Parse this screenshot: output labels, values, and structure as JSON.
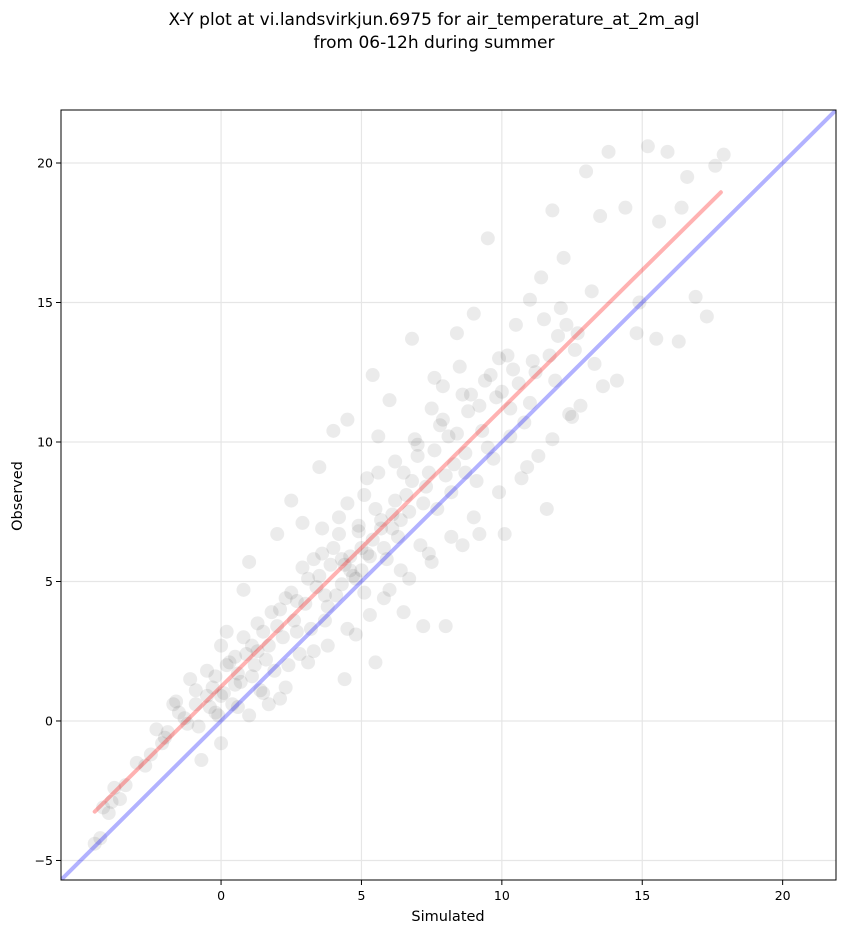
{
  "chart_data": {
    "type": "scatter",
    "title_lines": [
      "X-Y plot at vi.landsvirkjun.6975 for air_temperature_at_2m_agl",
      "from 06-12h during summer"
    ],
    "xlabel": "Simulated",
    "ylabel": "Observed",
    "xlim": [
      -5.7,
      21.9
    ],
    "ylim": [
      -5.7,
      21.9
    ],
    "xticks": [
      0,
      5,
      10,
      15,
      20
    ],
    "yticks": [
      -5,
      0,
      5,
      10,
      15,
      20
    ],
    "xtick_labels": [
      "0",
      "5",
      "10",
      "15",
      "20"
    ],
    "ytick_labels": [
      "−5",
      "0",
      "5",
      "10",
      "15",
      "20"
    ],
    "grid": true,
    "point_color": "#000000",
    "point_opacity": 0.08,
    "lines": [
      {
        "role": "1:1 line",
        "color": "#0000ff",
        "opacity": 0.3,
        "x": [
          -5.7,
          21.9
        ],
        "y": [
          -5.7,
          21.9
        ]
      },
      {
        "role": "regression fit",
        "color": "#ff0000",
        "opacity": 0.3,
        "x": [
          -4.5,
          17.8
        ],
        "y": [
          -3.25,
          18.95
        ]
      }
    ],
    "points": [
      [
        -4.5,
        -4.4
      ],
      [
        -4.3,
        -4.2
      ],
      [
        -4.2,
        -3.1
      ],
      [
        -4.0,
        -3.3
      ],
      [
        -3.9,
        -2.9
      ],
      [
        -3.8,
        -2.4
      ],
      [
        -3.6,
        -2.8
      ],
      [
        -3.4,
        -2.3
      ],
      [
        -3.0,
        -1.5
      ],
      [
        -2.7,
        -1.6
      ],
      [
        -2.3,
        -0.3
      ],
      [
        -2.1,
        -0.8
      ],
      [
        -1.9,
        -0.4
      ],
      [
        -1.7,
        0.6
      ],
      [
        -1.5,
        0.3
      ],
      [
        -1.2,
        -0.1
      ],
      [
        -1.1,
        1.5
      ],
      [
        -0.9,
        0.6
      ],
      [
        -0.7,
        -1.4
      ],
      [
        -0.5,
        0.9
      ],
      [
        -0.3,
        1.2
      ],
      [
        -0.2,
        0.3
      ],
      [
        0.0,
        -0.8
      ],
      [
        0.0,
        2.7
      ],
      [
        0.2,
        3.2
      ],
      [
        0.3,
        2.1
      ],
      [
        0.5,
        1.3
      ],
      [
        0.6,
        0.5
      ],
      [
        0.8,
        4.7
      ],
      [
        0.9,
        2.4
      ],
      [
        1.0,
        5.7
      ],
      [
        1.1,
        1.6
      ],
      [
        1.3,
        3.5
      ],
      [
        1.5,
        1.0
      ],
      [
        1.7,
        2.7
      ],
      [
        2.0,
        6.7
      ],
      [
        2.1,
        0.8
      ],
      [
        2.3,
        4.4
      ],
      [
        2.5,
        7.9
      ],
      [
        2.7,
        3.2
      ],
      [
        2.9,
        7.1
      ],
      [
        3.1,
        5.1
      ],
      [
        3.3,
        2.5
      ],
      [
        3.5,
        9.1
      ],
      [
        3.6,
        6.0
      ],
      [
        3.8,
        4.1
      ],
      [
        4.0,
        10.4
      ],
      [
        4.2,
        7.3
      ],
      [
        4.4,
        1.5
      ],
      [
        4.5,
        10.8
      ],
      [
        4.6,
        5.4
      ],
      [
        4.8,
        3.1
      ],
      [
        5.0,
        6.2
      ],
      [
        5.2,
        8.7
      ],
      [
        5.4,
        12.4
      ],
      [
        5.5,
        2.1
      ],
      [
        5.6,
        10.2
      ],
      [
        5.8,
        4.4
      ],
      [
        6.0,
        11.5
      ],
      [
        6.2,
        7.9
      ],
      [
        6.5,
        3.9
      ],
      [
        6.8,
        13.7
      ],
      [
        7.0,
        9.5
      ],
      [
        7.2,
        3.4
      ],
      [
        7.4,
        6.0
      ],
      [
        7.6,
        12.3
      ],
      [
        7.8,
        10.6
      ],
      [
        8.0,
        3.4
      ],
      [
        8.2,
        8.2
      ],
      [
        8.4,
        13.9
      ],
      [
        8.6,
        6.3
      ],
      [
        8.9,
        11.7
      ],
      [
        9.0,
        14.6
      ],
      [
        9.2,
        6.7
      ],
      [
        9.5,
        17.3
      ],
      [
        9.7,
        9.4
      ],
      [
        9.9,
        13.0
      ],
      [
        10.1,
        6.7
      ],
      [
        10.3,
        11.2
      ],
      [
        10.5,
        14.2
      ],
      [
        10.7,
        8.7
      ],
      [
        11.0,
        15.1
      ],
      [
        11.2,
        12.5
      ],
      [
        11.4,
        15.9
      ],
      [
        11.6,
        7.6
      ],
      [
        11.8,
        18.3
      ],
      [
        12.0,
        13.8
      ],
      [
        12.2,
        16.6
      ],
      [
        12.4,
        11.0
      ],
      [
        12.7,
        13.9
      ],
      [
        13.0,
        19.7
      ],
      [
        13.2,
        15.4
      ],
      [
        13.5,
        18.1
      ],
      [
        13.8,
        20.4
      ],
      [
        14.1,
        12.2
      ],
      [
        14.4,
        18.4
      ],
      [
        14.8,
        13.9
      ],
      [
        15.2,
        20.6
      ],
      [
        15.5,
        13.7
      ],
      [
        15.6,
        17.9
      ],
      [
        15.9,
        20.4
      ],
      [
        16.3,
        13.6
      ],
      [
        16.4,
        18.4
      ],
      [
        16.6,
        19.5
      ],
      [
        16.9,
        15.2
      ],
      [
        17.3,
        14.5
      ],
      [
        17.6,
        19.9
      ],
      [
        17.9,
        20.3
      ],
      [
        14.9,
        15.0
      ],
      [
        13.3,
        12.8
      ],
      [
        12.5,
        10.9
      ],
      [
        11.3,
        9.5
      ],
      [
        10.8,
        10.7
      ],
      [
        9.8,
        11.6
      ],
      [
        9.1,
        8.6
      ],
      [
        8.7,
        9.6
      ],
      [
        8.1,
        10.2
      ],
      [
        7.7,
        7.6
      ],
      [
        7.3,
        8.4
      ],
      [
        7.1,
        6.3
      ],
      [
        6.7,
        7.5
      ],
      [
        6.4,
        5.4
      ],
      [
        6.1,
        6.9
      ],
      [
        5.9,
        5.8
      ],
      [
        5.7,
        7.2
      ],
      [
        5.3,
        5.9
      ],
      [
        5.1,
        4.6
      ],
      [
        4.9,
        6.8
      ],
      [
        4.7,
        5.2
      ],
      [
        4.3,
        5.8
      ],
      [
        4.1,
        4.5
      ],
      [
        3.9,
        5.6
      ],
      [
        3.7,
        3.6
      ],
      [
        3.4,
        4.8
      ],
      [
        3.2,
        3.3
      ],
      [
        3.0,
        4.2
      ],
      [
        2.8,
        2.4
      ],
      [
        2.6,
        3.6
      ],
      [
        2.4,
        2.0
      ],
      [
        2.2,
        3.0
      ],
      [
        1.9,
        1.8
      ],
      [
        1.6,
        2.2
      ],
      [
        1.4,
        1.1
      ],
      [
        1.2,
        2.0
      ],
      [
        0.7,
        1.4
      ],
      [
        0.4,
        0.6
      ],
      [
        0.1,
        1.0
      ],
      [
        -0.1,
        0.2
      ],
      [
        -0.4,
        0.5
      ],
      [
        -0.8,
        -0.2
      ],
      [
        -1.3,
        0.1
      ],
      [
        -1.6,
        0.7
      ],
      [
        -2.0,
        -0.6
      ],
      [
        -2.5,
        -1.2
      ],
      [
        5.0,
        5.4
      ],
      [
        5.4,
        6.5
      ],
      [
        4.6,
        5.9
      ],
      [
        4.8,
        5.1
      ],
      [
        5.2,
        6.0
      ],
      [
        4.4,
        5.6
      ],
      [
        6.3,
        6.6
      ],
      [
        5.8,
        6.2
      ],
      [
        6.6,
        8.1
      ],
      [
        7.4,
        8.9
      ],
      [
        8.3,
        9.2
      ],
      [
        9.3,
        10.4
      ],
      [
        10.0,
        11.8
      ],
      [
        10.6,
        12.1
      ],
      [
        11.1,
        12.9
      ],
      [
        11.7,
        13.1
      ],
      [
        12.3,
        14.2
      ],
      [
        9.6,
        12.4
      ],
      [
        8.8,
        11.1
      ],
      [
        8.5,
        12.7
      ],
      [
        7.9,
        12.0
      ],
      [
        7.5,
        11.2
      ],
      [
        6.9,
        10.1
      ],
      [
        6.2,
        9.3
      ],
      [
        5.6,
        8.9
      ],
      [
        5.1,
        8.1
      ],
      [
        4.5,
        7.8
      ],
      [
        4.2,
        6.7
      ],
      [
        3.6,
        6.9
      ],
      [
        3.3,
        5.8
      ],
      [
        2.9,
        5.5
      ],
      [
        2.5,
        4.6
      ],
      [
        2.1,
        4.0
      ],
      [
        1.8,
        3.9
      ],
      [
        1.5,
        3.2
      ],
      [
        1.1,
        2.7
      ],
      [
        0.8,
        3.0
      ],
      [
        0.5,
        2.3
      ],
      [
        0.2,
        2.0
      ],
      [
        -0.2,
        1.6
      ],
      [
        -0.5,
        1.8
      ],
      [
        -0.9,
        1.1
      ],
      [
        3.1,
        2.1
      ],
      [
        3.8,
        2.7
      ],
      [
        4.5,
        3.3
      ],
      [
        5.3,
        3.8
      ],
      [
        6.0,
        4.7
      ],
      [
        6.7,
        5.1
      ],
      [
        7.5,
        5.7
      ],
      [
        8.2,
        6.6
      ],
      [
        9.0,
        7.3
      ],
      [
        9.9,
        8.2
      ],
      [
        10.9,
        9.1
      ],
      [
        11.8,
        10.1
      ],
      [
        12.8,
        11.3
      ],
      [
        13.6,
        12.0
      ],
      [
        2.3,
        1.2
      ],
      [
        1.7,
        0.6
      ],
      [
        1.0,
        0.2
      ],
      [
        7.0,
        9.9
      ],
      [
        7.9,
        10.8
      ],
      [
        8.6,
        11.7
      ],
      [
        9.4,
        12.2
      ],
      [
        10.2,
        13.1
      ],
      [
        11.5,
        14.4
      ],
      [
        12.1,
        14.8
      ],
      [
        6.5,
        8.9
      ],
      [
        5.5,
        7.6
      ],
      [
        4.9,
        7.0
      ],
      [
        4.0,
        6.2
      ],
      [
        3.5,
        5.2
      ],
      [
        2.7,
        4.3
      ],
      [
        2.0,
        3.4
      ],
      [
        1.3,
        2.5
      ],
      [
        0.6,
        1.7
      ],
      [
        0.0,
        0.9
      ],
      [
        6.1,
        7.4
      ],
      [
        6.8,
        8.6
      ],
      [
        7.6,
        9.7
      ],
      [
        8.4,
        10.3
      ],
      [
        9.2,
        11.3
      ],
      [
        10.4,
        12.6
      ],
      [
        3.7,
        4.5
      ],
      [
        4.3,
        4.9
      ],
      [
        5.7,
        6.9
      ],
      [
        6.4,
        7.2
      ],
      [
        7.2,
        7.8
      ],
      [
        8.0,
        8.8
      ],
      [
        8.7,
        8.9
      ],
      [
        9.5,
        9.8
      ],
      [
        10.3,
        10.2
      ],
      [
        11.0,
        11.4
      ],
      [
        11.9,
        12.2
      ],
      [
        12.6,
        13.3
      ]
    ]
  }
}
